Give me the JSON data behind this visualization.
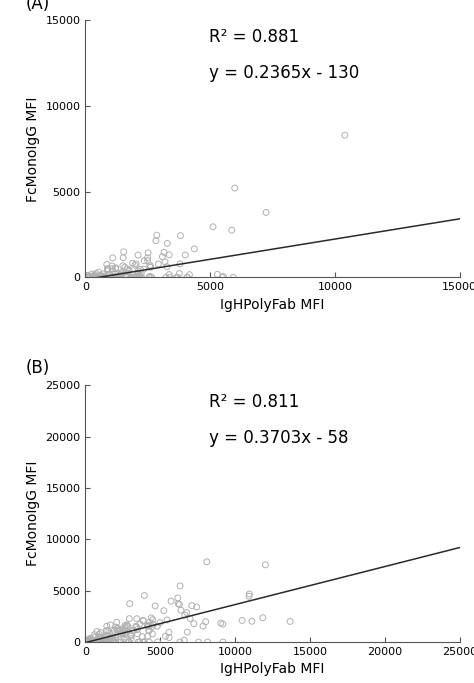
{
  "panel_A": {
    "label": "(A)",
    "r2": "R² = 0.881",
    "equation": "y = 0.2365x - 130",
    "slope": 0.2365,
    "intercept": -130,
    "xlim": [
      0,
      15000
    ],
    "ylim": [
      0,
      15000
    ],
    "xticks": [
      0,
      5000,
      10000,
      15000
    ],
    "yticks": [
      0,
      5000,
      10000,
      15000
    ],
    "xlabel": "IgHPolyFab MFI",
    "ylabel": "FcMonoIgG MFI",
    "seed": 42,
    "n_points": 130
  },
  "panel_B": {
    "label": "(B)",
    "r2": "R² = 0.811",
    "equation": "y = 0.3703x - 58",
    "slope": 0.3703,
    "intercept": -58,
    "xlim": [
      0,
      25000
    ],
    "ylim": [
      0,
      25000
    ],
    "xticks": [
      0,
      5000,
      10000,
      15000,
      20000,
      25000
    ],
    "yticks": [
      0,
      5000,
      10000,
      15000,
      20000,
      25000
    ],
    "xlabel": "IgHPolyFab MFI",
    "ylabel": "FcMonoIgG MFI",
    "seed": 7,
    "n_points": 170
  },
  "scatter_color": "#b0b0b0",
  "line_color": "#2a2a2a",
  "background_color": "#ffffff",
  "marker_size": 18,
  "annotation_fontsize": 12,
  "axis_label_fontsize": 10,
  "tick_fontsize": 8,
  "panel_label_fontsize": 12
}
